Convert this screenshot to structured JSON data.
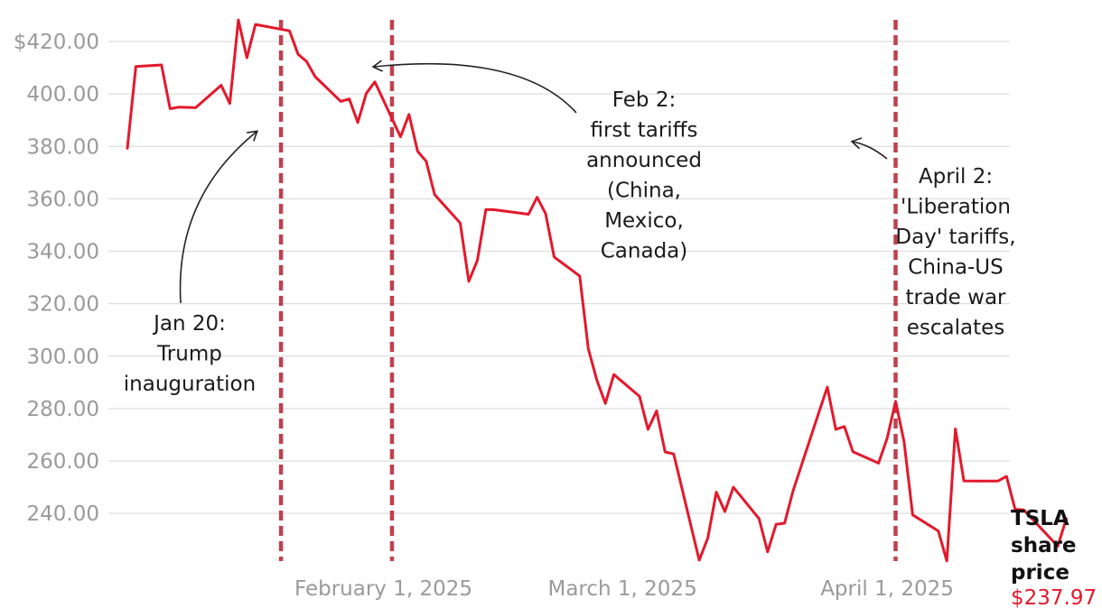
{
  "chart_data": {
    "type": "line",
    "series": [
      {
        "name": "TSLA share price",
        "color": "#e3192c",
        "points": [
          [
            "2025-01-02",
            379.28
          ],
          [
            "2025-01-03",
            410.44
          ],
          [
            "2025-01-06",
            411.05
          ],
          [
            "2025-01-07",
            394.36
          ],
          [
            "2025-01-08",
            394.94
          ],
          [
            "2025-01-10",
            394.74
          ],
          [
            "2025-01-13",
            403.31
          ],
          [
            "2025-01-14",
            396.36
          ],
          [
            "2025-01-15",
            428.22
          ],
          [
            "2025-01-16",
            413.82
          ],
          [
            "2025-01-17",
            426.5
          ],
          [
            "2025-01-21",
            424.07
          ],
          [
            "2025-01-22",
            415.11
          ],
          [
            "2025-01-23",
            412.38
          ],
          [
            "2025-01-24",
            406.58
          ],
          [
            "2025-01-27",
            397.15
          ],
          [
            "2025-01-28",
            398.09
          ],
          [
            "2025-01-29",
            389.1
          ],
          [
            "2025-01-30",
            400.28
          ],
          [
            "2025-01-31",
            404.6
          ],
          [
            "2025-02-03",
            383.68
          ],
          [
            "2025-02-04",
            392.21
          ],
          [
            "2025-02-05",
            378.17
          ],
          [
            "2025-02-06",
            374.32
          ],
          [
            "2025-02-07",
            361.62
          ],
          [
            "2025-02-10",
            350.73
          ],
          [
            "2025-02-11",
            328.5
          ],
          [
            "2025-02-12",
            336.51
          ],
          [
            "2025-02-13",
            355.94
          ],
          [
            "2025-02-14",
            355.84
          ],
          [
            "2025-02-18",
            354.11
          ],
          [
            "2025-02-19",
            360.56
          ],
          [
            "2025-02-20",
            354.4
          ],
          [
            "2025-02-21",
            337.8
          ],
          [
            "2025-02-24",
            330.53
          ],
          [
            "2025-02-25",
            302.8
          ],
          [
            "2025-02-26",
            290.8
          ],
          [
            "2025-02-27",
            281.95
          ],
          [
            "2025-02-28",
            292.98
          ],
          [
            "2025-03-03",
            284.65
          ],
          [
            "2025-03-04",
            272.04
          ],
          [
            "2025-03-05",
            279.1
          ],
          [
            "2025-03-06",
            263.45
          ],
          [
            "2025-03-07",
            262.67
          ],
          [
            "2025-03-10",
            222.15
          ],
          [
            "2025-03-11",
            230.58
          ],
          [
            "2025-03-12",
            248.09
          ],
          [
            "2025-03-13",
            240.68
          ],
          [
            "2025-03-14",
            249.98
          ],
          [
            "2025-03-17",
            238.01
          ],
          [
            "2025-03-18",
            225.31
          ],
          [
            "2025-03-19",
            235.86
          ],
          [
            "2025-03-20",
            236.26
          ],
          [
            "2025-03-21",
            248.71
          ],
          [
            "2025-03-24",
            278.39
          ],
          [
            "2025-03-25",
            288.14
          ],
          [
            "2025-03-26",
            272.06
          ],
          [
            "2025-03-27",
            273.13
          ],
          [
            "2025-03-28",
            263.55
          ],
          [
            "2025-03-31",
            259.16
          ],
          [
            "2025-04-01",
            268.46
          ],
          [
            "2025-04-02",
            282.76
          ],
          [
            "2025-04-03",
            267.28
          ],
          [
            "2025-04-04",
            239.43
          ],
          [
            "2025-04-07",
            233.29
          ],
          [
            "2025-04-08",
            221.86
          ],
          [
            "2025-04-09",
            272.2
          ],
          [
            "2025-04-10",
            252.4
          ],
          [
            "2025-04-11",
            252.31
          ],
          [
            "2025-04-14",
            252.35
          ],
          [
            "2025-04-15",
            254.11
          ],
          [
            "2025-04-16",
            241.55
          ],
          [
            "2025-04-17",
            241.37
          ],
          [
            "2025-04-21",
            227.5
          ],
          [
            "2025-04-22",
            237.97
          ]
        ]
      }
    ],
    "y_ticks": [
      "$420.00",
      "400.00",
      "380.00",
      "360.00",
      "340.00",
      "320.00",
      "300.00",
      "280.00",
      "260.00",
      "240.00"
    ],
    "y_tick_values": [
      420,
      400,
      380,
      360,
      340,
      320,
      300,
      280,
      260,
      240
    ],
    "x_ticks": [
      {
        "date": "2025-02-01",
        "label": "February 1, 2025"
      },
      {
        "date": "2025-03-01",
        "label": "March 1, 2025"
      },
      {
        "date": "2025-04-01",
        "label": "April 1, 2025"
      }
    ],
    "ylim": [
      222,
      428
    ],
    "grid": "horizontal",
    "event_lines": [
      {
        "date": "2025-01-20",
        "color": "#c0404f"
      },
      {
        "date": "2025-02-02",
        "color": "#c0404f"
      },
      {
        "date": "2025-04-02",
        "color": "#c0404f"
      }
    ],
    "annotations": [
      {
        "lines": [
          "Jan 20:",
          "Trump",
          "inauguration"
        ]
      },
      {
        "lines": [
          "Feb 2:",
          "first tariffs",
          "announced",
          "(China,",
          "Mexico,",
          "Canada)"
        ]
      },
      {
        "lines": [
          "April 2:",
          "'Liberation",
          "Day' tariffs,",
          "China-US",
          "trade war",
          "escalates"
        ]
      }
    ],
    "series_label": [
      "TSLA",
      "share",
      "price"
    ],
    "last_price_label": "$237.97"
  }
}
